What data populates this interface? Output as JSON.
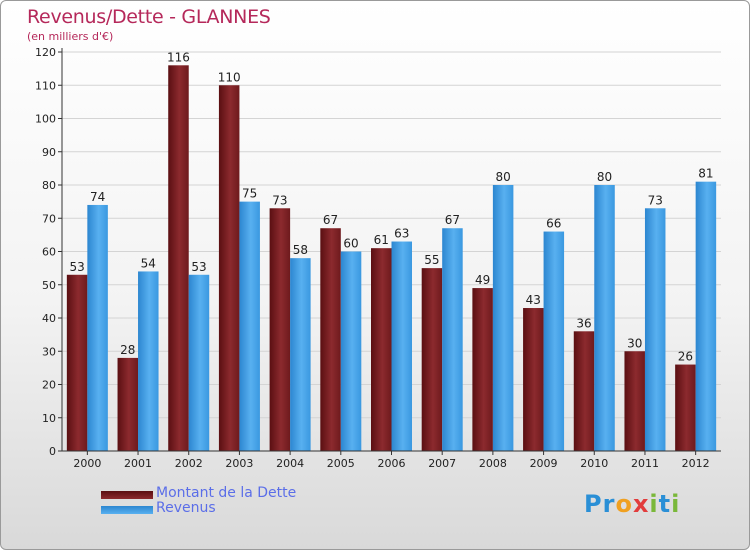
{
  "title": "Revenus/Dette - GLANNES",
  "subtitle": "(en milliers d'€)",
  "logo": {
    "letters": [
      "P",
      "r",
      "o",
      "x",
      "i",
      "t",
      "i"
    ],
    "colors": [
      "#2a8fd6",
      "#2a8fd6",
      "#f0a020",
      "#e23c3c",
      "#7ab83a",
      "#2a8fd6",
      "#7ab83a"
    ]
  },
  "chart_data": {
    "type": "bar",
    "categories": [
      "2000",
      "2001",
      "2002",
      "2003",
      "2004",
      "2005",
      "2006",
      "2007",
      "2008",
      "2009",
      "2010",
      "2011",
      "2012"
    ],
    "series": [
      {
        "name": "Montant de la Dette",
        "values": [
          53,
          28,
          116,
          110,
          73,
          67,
          61,
          55,
          49,
          43,
          36,
          30,
          26
        ],
        "color": "#7a1f22"
      },
      {
        "name": "Revenus",
        "values": [
          74,
          54,
          53,
          75,
          58,
          60,
          63,
          67,
          80,
          66,
          80,
          73,
          81
        ],
        "color": "#3d9be3"
      }
    ],
    "ylim": [
      0,
      120
    ],
    "yticks": [
      0,
      10,
      20,
      30,
      40,
      50,
      60,
      70,
      80,
      90,
      100,
      110,
      120
    ],
    "grid": true,
    "legend": "bottom-left"
  }
}
